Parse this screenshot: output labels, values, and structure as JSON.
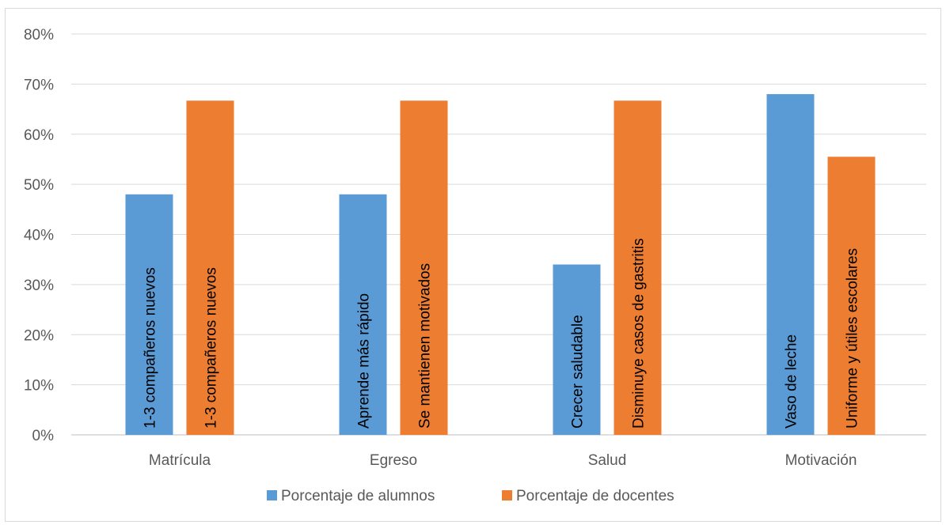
{
  "chart_data": {
    "type": "bar",
    "title": "",
    "xlabel": "",
    "ylabel": "",
    "categories": [
      "Matrícula",
      "Egreso",
      "Salud",
      "Motivación"
    ],
    "ylim": [
      0,
      80
    ],
    "ytick_values": [
      0,
      10,
      20,
      30,
      40,
      50,
      60,
      70,
      80
    ],
    "ytick_labels": [
      "0%",
      "10%",
      "20%",
      "30%",
      "40%",
      "50%",
      "60%",
      "70%",
      "80%"
    ],
    "grid": true,
    "legend_position": "bottom",
    "series": [
      {
        "name": "Porcentaje de alumnos",
        "color": "#5b9bd5",
        "values": [
          48,
          48,
          34,
          68
        ],
        "bar_labels": [
          "1-3 compañeros nuevos",
          "Aprende más rápido",
          "Crecer saludable",
          "Vaso de leche"
        ]
      },
      {
        "name": "Porcentaje de docentes",
        "color": "#ed7d31",
        "values": [
          66.7,
          66.7,
          66.7,
          55.5
        ],
        "bar_labels": [
          "1-3 compañeros nuevos",
          "Se mantienen motivados",
          "Disminuye casos de gastritis",
          "Uniforme y útiles escolares"
        ]
      }
    ]
  }
}
